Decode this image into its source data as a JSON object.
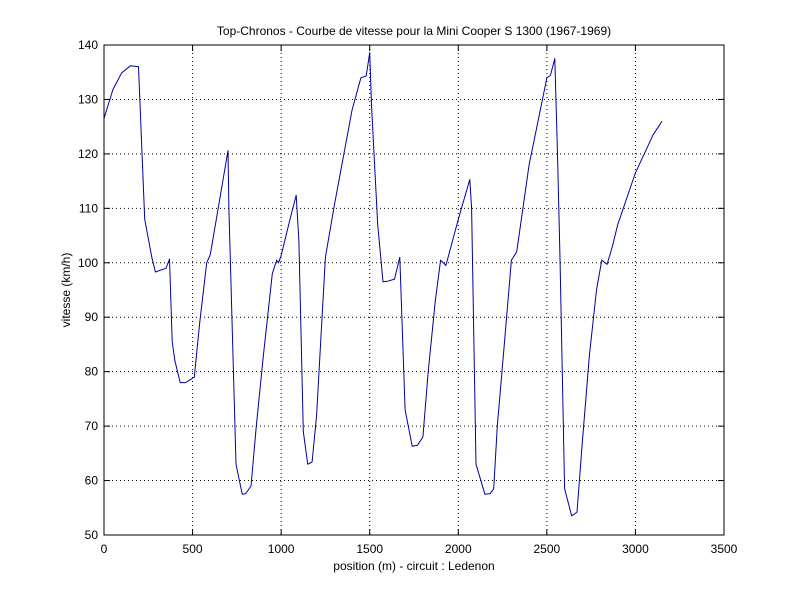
{
  "chart_data": {
    "type": "line",
    "title": "Top-Chronos - Courbe de vitesse pour la Mini Cooper S 1300 (1967-1969)",
    "xlabel": "position (m) - circuit : Ledenon",
    "ylabel": "vitesse (km/h)",
    "xlim": [
      0,
      3500
    ],
    "ylim": [
      50,
      140
    ],
    "xticks": [
      0,
      500,
      1000,
      1500,
      2000,
      2500,
      3000,
      3500
    ],
    "yticks": [
      50,
      60,
      70,
      80,
      90,
      100,
      110,
      120,
      130,
      140
    ],
    "grid": "dotted",
    "line_color": "#0000a0",
    "series": [
      {
        "x": [
          0,
          50,
          100,
          150,
          195,
          230,
          270,
          290,
          350,
          370,
          385,
          400,
          430,
          460,
          510,
          540,
          580,
          600,
          650,
          700,
          705,
          745,
          780,
          800,
          830,
          860,
          900,
          950,
          975,
          985,
          1000,
          1050,
          1085,
          1100,
          1125,
          1150,
          1175,
          1200,
          1250,
          1300,
          1400,
          1450,
          1480,
          1500,
          1510,
          1545,
          1575,
          1600,
          1640,
          1670,
          1700,
          1740,
          1770,
          1800,
          1830,
          1870,
          1900,
          1930,
          2000,
          2065,
          2075,
          2100,
          2150,
          2180,
          2200,
          2220,
          2260,
          2300,
          2330,
          2400,
          2500,
          2520,
          2545,
          2560,
          2575,
          2600,
          2640,
          2670,
          2700,
          2740,
          2780,
          2810,
          2840,
          2870,
          2900,
          3000,
          3100,
          3150
        ],
        "y": [
          126.5,
          131.8,
          134.9,
          136.2,
          136.0,
          108,
          101,
          98.3,
          99,
          100.7,
          85.5,
          82,
          78,
          78,
          79,
          89,
          100,
          101.5,
          111,
          120.6,
          110,
          63,
          57.5,
          57.6,
          59,
          70,
          83,
          98,
          100.5,
          100,
          101.3,
          108,
          112.4,
          104,
          69,
          63,
          63.4,
          72,
          101,
          110.5,
          128,
          134,
          134.3,
          138.6,
          129,
          107,
          96.5,
          96.6,
          97,
          101,
          73,
          66.3,
          66.5,
          68,
          80,
          93,
          100.5,
          99.5,
          108,
          115.3,
          110,
          63,
          57.5,
          57.6,
          58.5,
          70,
          85,
          100.5,
          102,
          118,
          134,
          134.4,
          137.5,
          120,
          100,
          58.5,
          53.5,
          54.2,
          67,
          83,
          95,
          100.5,
          99.7,
          103,
          107,
          116.5,
          123.5,
          126
        ]
      }
    ]
  }
}
